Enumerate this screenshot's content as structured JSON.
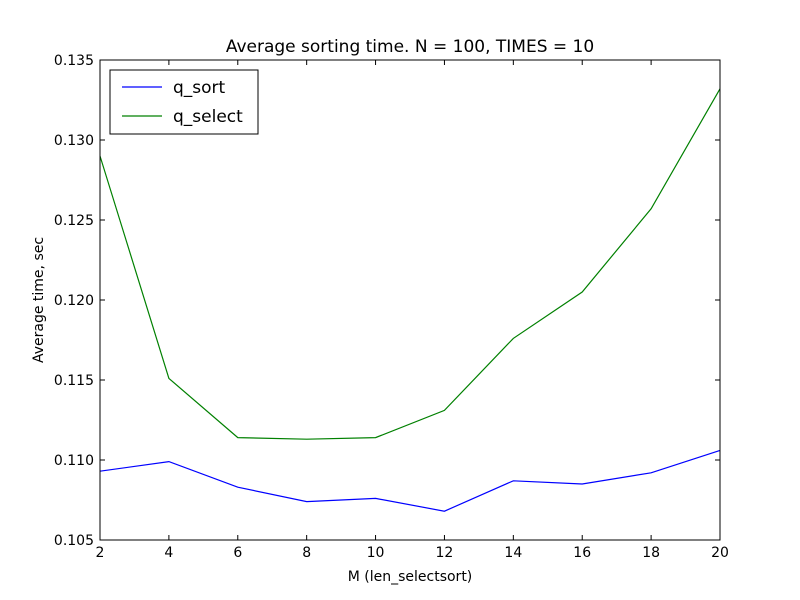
{
  "chart_data": {
    "type": "line",
    "title": "Average sorting time. N = 100, TIMES = 10",
    "xlabel": "M (len_selectsort)",
    "ylabel": "Average time, sec",
    "xlim": [
      2,
      20
    ],
    "ylim": [
      0.105,
      0.135
    ],
    "x_ticks": [
      2,
      4,
      6,
      8,
      10,
      12,
      14,
      16,
      18,
      20
    ],
    "y_ticks": [
      0.105,
      0.11,
      0.115,
      0.12,
      0.125,
      0.13,
      0.135
    ],
    "y_tick_labels": [
      "0.105",
      "0.110",
      "0.115",
      "0.120",
      "0.125",
      "0.130",
      "0.135"
    ],
    "x": [
      2,
      4,
      6,
      8,
      10,
      12,
      14,
      16,
      18,
      20
    ],
    "grid": false,
    "legend_position": "top-left",
    "series": [
      {
        "name": "q_sort",
        "color": "#0000ff",
        "values": [
          0.1093,
          0.1099,
          0.1083,
          0.1074,
          0.1076,
          0.1068,
          0.1087,
          0.1085,
          0.1092,
          0.1106
        ]
      },
      {
        "name": "q_select",
        "color": "#008000",
        "values": [
          0.129,
          0.1151,
          0.1114,
          0.1113,
          0.1114,
          0.1131,
          0.1176,
          0.1205,
          0.1257,
          0.1332
        ]
      }
    ]
  }
}
